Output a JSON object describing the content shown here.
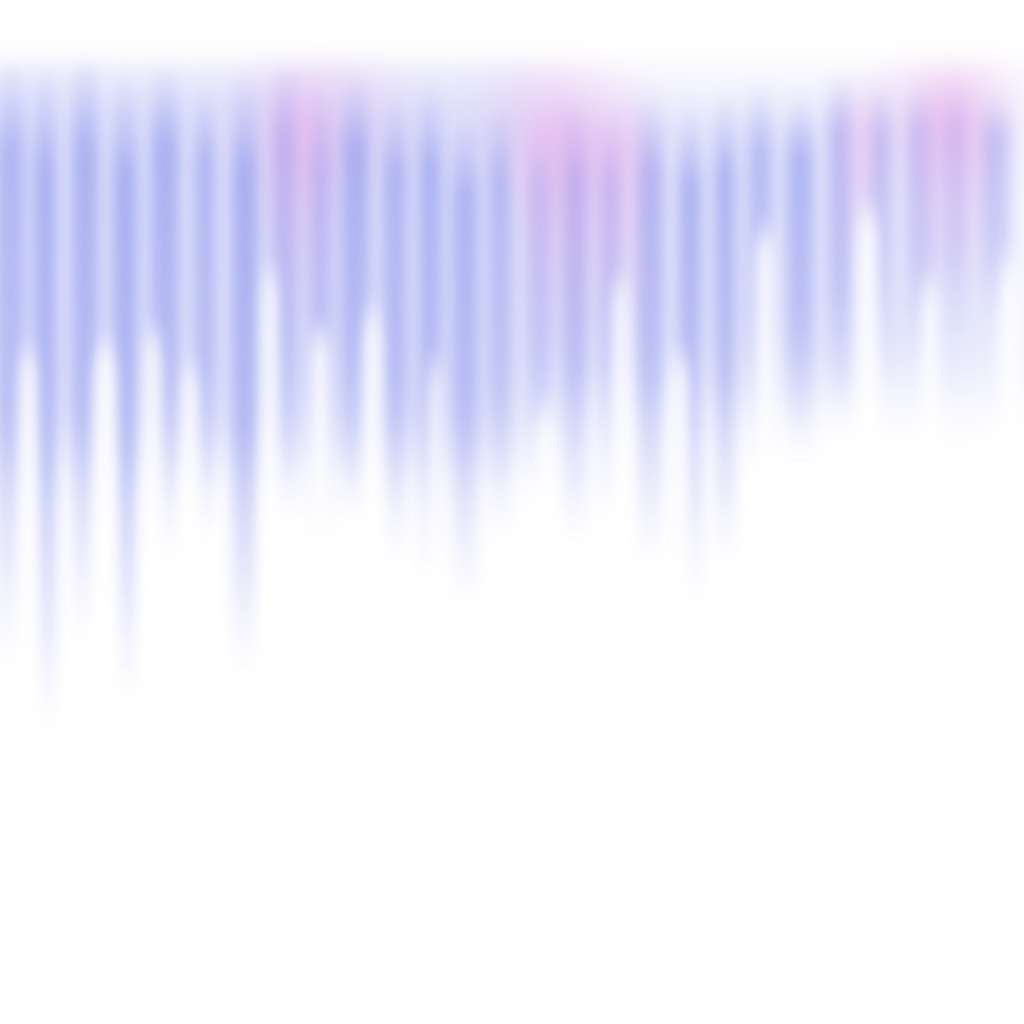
{
  "artwork": {
    "style": "abstract-aurora-streaks",
    "background_color": "#ffffff",
    "primary_color": "#8f97ec",
    "secondary_color": "#b3baf4",
    "accent_color": "#f0a8e8"
  }
}
